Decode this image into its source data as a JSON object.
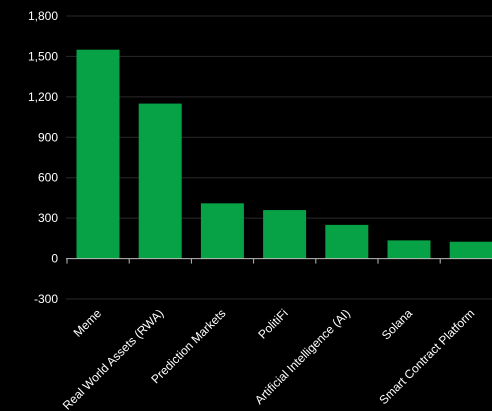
{
  "chart_data": {
    "type": "bar",
    "title": "",
    "xlabel": "",
    "ylabel": "",
    "categories": [
      "Meme",
      "Real World Assets (RWA)",
      "Prediction Markets",
      "PolitiFi",
      "Artificial Intelligence (AI)",
      "Solana",
      "Smart Contract Platform"
    ],
    "values": [
      1550,
      1150,
      410,
      360,
      250,
      135,
      125
    ],
    "ylim": [
      -300,
      1800
    ],
    "yticks": [
      {
        "value": -300,
        "label": "-300"
      },
      {
        "value": 0,
        "label": "0"
      },
      {
        "value": 300,
        "label": "300"
      },
      {
        "value": 600,
        "label": "600"
      },
      {
        "value": 900,
        "label": "900"
      },
      {
        "value": 1200,
        "label": "1,200"
      },
      {
        "value": 1500,
        "label": "1,500"
      },
      {
        "value": 1800,
        "label": "1,800"
      }
    ],
    "grid": true,
    "legend": "none",
    "colors": {
      "bar": "#06a245",
      "background": "#000000",
      "grid": "#2a2a2a",
      "axis": "#bbbbbb",
      "text": "#ffffff"
    }
  }
}
